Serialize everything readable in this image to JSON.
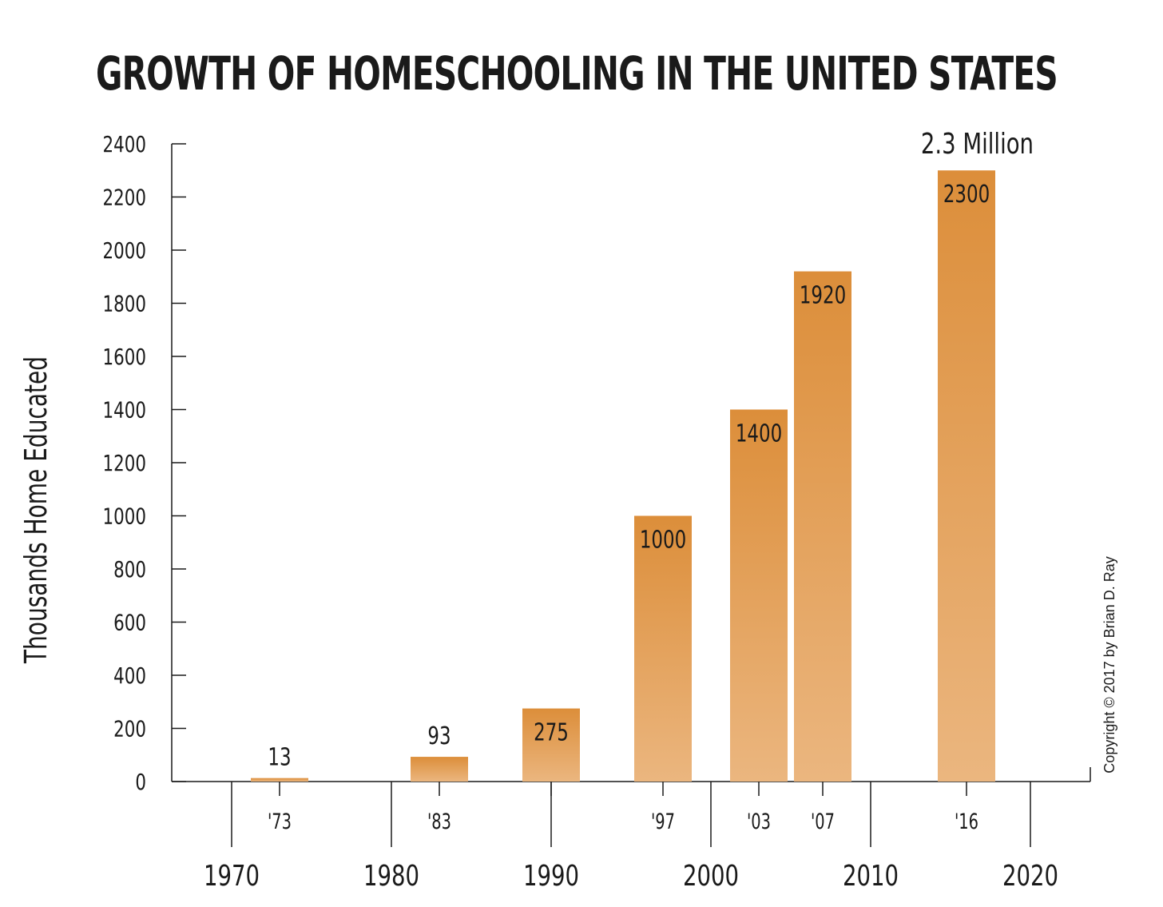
{
  "chart_data": {
    "type": "bar",
    "title": "GROWTH OF HOMESCHOOLING IN THE UNITED STATES",
    "ylabel": "Thousands Home Educated",
    "xlabel": "",
    "ylim": [
      0,
      2400
    ],
    "yticks": [
      0,
      200,
      400,
      600,
      800,
      1000,
      1200,
      1400,
      1600,
      1800,
      2000,
      2200,
      2400
    ],
    "xlim": [
      1962,
      2023
    ],
    "xticks": [
      1970,
      1980,
      1990,
      2000,
      2010,
      2020
    ],
    "bars": [
      {
        "year": 1973,
        "value": 13,
        "label": "13",
        "tick_label": "'73"
      },
      {
        "year": 1983,
        "value": 93,
        "label": "93",
        "tick_label": "'83"
      },
      {
        "year": 1990,
        "value": 275,
        "label": "275",
        "tick_label": ""
      },
      {
        "year": 1997,
        "value": 1000,
        "label": "1000",
        "tick_label": "'97"
      },
      {
        "year": 2003,
        "value": 1400,
        "label": "1400",
        "tick_label": "'03"
      },
      {
        "year": 2007,
        "value": 1920,
        "label": "1920",
        "tick_label": "'07"
      },
      {
        "year": 2016,
        "value": 2300,
        "label": "2300",
        "tick_label": "'16"
      }
    ],
    "annotation": "2.3 Million",
    "copyright": "Copyright © 2017 by Brian D. Ray",
    "bar_color_top": "#dc8e3a",
    "bar_color_bottom": "#ebb67f",
    "grid": false
  }
}
